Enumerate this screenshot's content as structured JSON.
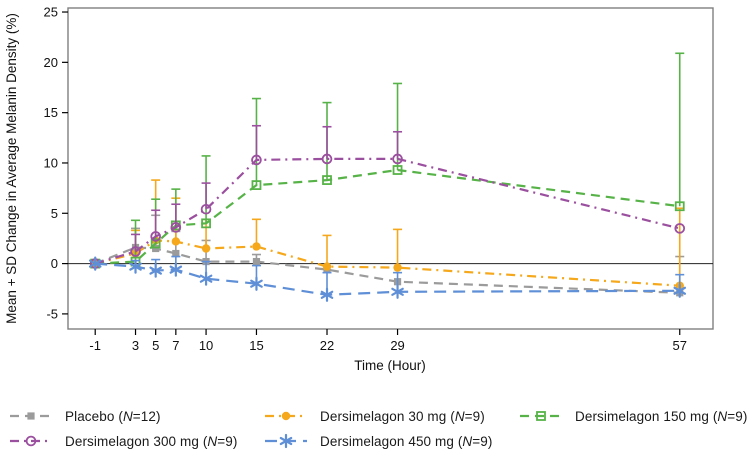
{
  "chart_data": {
    "type": "line",
    "title": "",
    "xlabel": "Time (Hour)",
    "ylabel": "Mean + SD Change in Average Melanin Density (%)",
    "x": [
      -1,
      3,
      5,
      7,
      10,
      15,
      22,
      29,
      57
    ],
    "x_ticks": [
      "-1",
      "3",
      "5",
      "7",
      "10",
      "15",
      "22",
      "29",
      "57"
    ],
    "y_ticks": [
      "-5",
      "0",
      "5",
      "10",
      "15",
      "20",
      "25"
    ],
    "xlim": [
      -3.7,
      60.3
    ],
    "ylim": [
      -6.5,
      25.4
    ],
    "grid": false,
    "zero_reference_line": 0,
    "error_bars": "mean + SD (upper only)",
    "legend_position": "bottom",
    "frame_color": "#7f7f7f",
    "series": [
      {
        "id": "placebo",
        "label": "Placebo (N=12)",
        "legend_text_parts": {
          "pre": "Placebo (",
          "italic": "N",
          "post": "=12)"
        },
        "marker": "square-filled",
        "color": "#9b9b9b",
        "dash": "9 6",
        "means": [
          0,
          1.6,
          1.5,
          1.0,
          0.2,
          0.2,
          -0.6,
          -1.8,
          -2.9
        ],
        "sd_upper": [
          null,
          3.5,
          4.8,
          3.2,
          2.3,
          0.9,
          null,
          null,
          0.7
        ]
      },
      {
        "id": "dersimelagon-30mg",
        "label": "Dersimelagon 30 mg (N=9)",
        "legend_text_parts": {
          "pre": "Dersimelagon 30 mg (",
          "italic": "N",
          "post": "=9)"
        },
        "marker": "circle-filled",
        "color": "#f5a81c",
        "dash": "9 5 2 5",
        "means": [
          0,
          1.0,
          2.3,
          2.2,
          1.5,
          1.7,
          -0.3,
          -0.4,
          -2.2
        ],
        "sd_upper": [
          null,
          3.3,
          8.3,
          6.5,
          4.4,
          4.4,
          2.8,
          3.4,
          5.5
        ]
      },
      {
        "id": "dersimelagon-150mg",
        "label": "Dersimelagon 150 mg (N=9)",
        "legend_text_parts": {
          "pre": "Dersimelagon 150 mg (",
          "italic": "N",
          "post": "=9)"
        },
        "marker": "square-open",
        "color": "#57b348",
        "dash": "9 6",
        "means": [
          0,
          0.2,
          2.0,
          3.8,
          4.0,
          7.8,
          8.3,
          9.3,
          5.7
        ],
        "sd_upper": [
          null,
          4.3,
          6.4,
          7.4,
          10.7,
          16.4,
          16.0,
          17.9,
          20.9
        ]
      },
      {
        "id": "dersimelagon-300mg",
        "label": "Dersimelagon 300 mg (N=9)",
        "legend_text_parts": {
          "pre": "Dersimelagon 300 mg (",
          "italic": "N",
          "post": "=9)"
        },
        "marker": "circle-open",
        "color": "#9b4f9f",
        "dash": "9 5 2 5",
        "means": [
          0,
          1.2,
          2.7,
          3.6,
          5.4,
          10.3,
          10.4,
          10.4,
          3.5
        ],
        "sd_upper": [
          null,
          2.9,
          5.3,
          5.9,
          8.0,
          13.7,
          13.6,
          13.1,
          null
        ]
      },
      {
        "id": "dersimelagon-450mg",
        "label": "Dersimelagon 450 mg (N=9)",
        "legend_text_parts": {
          "pre": "Dersimelagon 450 mg (",
          "italic": "N",
          "post": "=9)"
        },
        "marker": "asterisk",
        "color": "#5f8fd6",
        "dash": "12 7",
        "means": [
          0,
          -0.3,
          -0.7,
          -0.6,
          -1.5,
          -2.0,
          -3.1,
          -2.8,
          -2.7
        ],
        "sd_upper": [
          null,
          0.3,
          0.4,
          0.7,
          0.2,
          -0.2,
          -0.9,
          -0.9,
          -1.1
        ]
      }
    ]
  }
}
